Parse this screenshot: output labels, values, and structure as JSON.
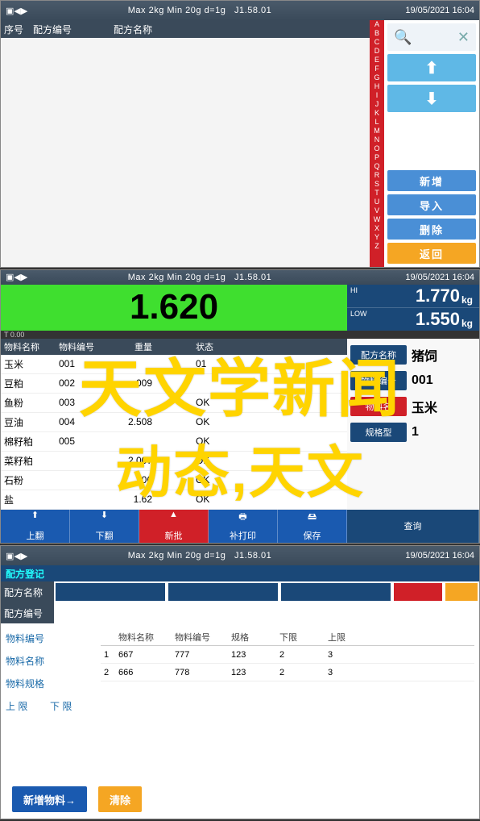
{
  "header": {
    "spec": "Max 2kg  Min 20g  d=1g",
    "version": "J1.58.01",
    "datetime": "19/05/2021  16:04"
  },
  "screen1": {
    "col_seq": "序号",
    "col_recipe_code": "配方编号",
    "col_recipe_name": "配方名称",
    "alpha": [
      "A",
      "B",
      "C",
      "D",
      "E",
      "F",
      "G",
      "H",
      "I",
      "J",
      "K",
      "L",
      "M",
      "N",
      "O",
      "P",
      "Q",
      "R",
      "S",
      "T",
      "U",
      "V",
      "W",
      "X",
      "Y",
      "Z"
    ],
    "search_glyph": "🔍",
    "close_glyph": "✕",
    "up_glyph": "⬆",
    "down_glyph": "⬇",
    "btn_new": "新增",
    "btn_import": "导入",
    "btn_delete": "删除",
    "btn_back": "返回"
  },
  "screen2": {
    "main_value": "1.620",
    "hi_label": "HI",
    "hi_value": "1.770",
    "low_label": "LOW",
    "low_value": "1.550",
    "unit": "kg",
    "small_status": "T  0.00",
    "col_material_name": "物料名称",
    "col_material_code": "物料编号",
    "col_weight": "重量",
    "col_status": "状态",
    "rows": [
      {
        "name": "玉米",
        "code": "001",
        "wt": "",
        "st": "01"
      },
      {
        "name": "豆粕",
        "code": "002",
        "wt": ".009",
        "st": ""
      },
      {
        "name": "鱼粉",
        "code": "003",
        "wt": "",
        "st": "OK"
      },
      {
        "name": "豆油",
        "code": "004",
        "wt": "2.508",
        "st": "OK"
      },
      {
        "name": "棉籽粕",
        "code": "005",
        "wt": "",
        "st": "OK"
      },
      {
        "name": "菜籽粕",
        "code": "",
        "wt": "2.007",
        "st": "OK"
      },
      {
        "name": "石粉",
        "code": "",
        "wt": ".306",
        "st": "OK"
      },
      {
        "name": "盐",
        "code": "",
        "wt": "1.62",
        "st": "OK"
      }
    ],
    "info": {
      "recipe_name_k": "配方名称",
      "recipe_name_v": "猪饲",
      "mat_code_k": "物料编号",
      "mat_code_v": "001",
      "mat_name_k": "物料名",
      "mat_name_v": "玉米",
      "spec_k": "规格型",
      "spec_v": "1"
    },
    "bbar": {
      "up": "上翻",
      "down": "下翻",
      "new": "新批",
      "reprint": "补打印",
      "save": "保存",
      "query": "查询"
    }
  },
  "screen3": {
    "title": "配方登记",
    "recipe_name": "配方名称",
    "recipe_code": "配方编号",
    "left": {
      "mat_code": "物料编号",
      "mat_name": "物料名称",
      "mat_spec": "物料规格",
      "upper": "上 限",
      "lower": "下 限"
    },
    "tbl_hdr": {
      "c1": "物料名称",
      "c2": "物料编号",
      "c3": "规格",
      "c4": "下限",
      "c5": "上限"
    },
    "tbl_rows": [
      {
        "i": "1",
        "c1": "667",
        "c2": "777",
        "c3": "123",
        "c4": "2",
        "c5": "3"
      },
      {
        "i": "2",
        "c1": "666",
        "c2": "778",
        "c3": "123",
        "c4": "2",
        "c5": "3"
      }
    ],
    "btn_add": "新增物料→",
    "btn_clear": "清除"
  },
  "watermark": {
    "line1": "天文学新闻",
    "line2": "动态,天文"
  },
  "colors": {
    "hdr": "#3a4a5a",
    "accent_blue": "#1a4878",
    "bright_blue": "#5fb8e6",
    "red": "#d02028",
    "orange": "#f5a623",
    "green_disp": "#3fdf2f",
    "wm": "#ffd400"
  }
}
